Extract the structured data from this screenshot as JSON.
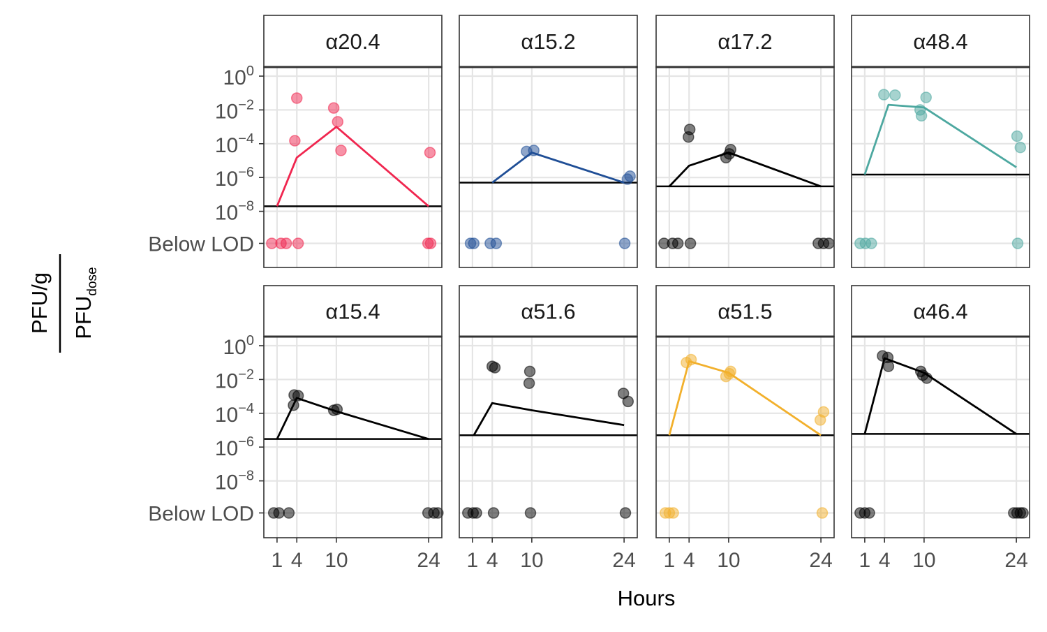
{
  "chart_data": {
    "type": "scatter",
    "xlabel": "Hours",
    "ylabel": {
      "numerator": "PFU/g",
      "denominator": "PFU",
      "denominator_subscript": "dose"
    },
    "y_scale": "log10",
    "ylim_log10": [
      -9,
      2
    ],
    "y_ticks": [
      {
        "base": "10",
        "exp": "0",
        "value": 1
      },
      {
        "base": "10",
        "exp": "−2",
        "value": 0.01
      },
      {
        "base": "10",
        "exp": "−4",
        "value": 0.0001
      },
      {
        "base": "10",
        "exp": "−6",
        "value": 1e-06
      },
      {
        "base": "10",
        "exp": "−8",
        "value": 1e-08
      }
    ],
    "below_lod_label": "Below LOD",
    "x_ticks": [
      1,
      4,
      10,
      24
    ],
    "xlim": [
      -1,
      26
    ],
    "grid": true,
    "legend": "none",
    "panels": [
      {
        "title": "α20.4",
        "color": "#F0264F",
        "line_color": "#F0264F",
        "lod": 2e-08,
        "points": [
          [
            4,
            0.05
          ],
          [
            3.7,
            0.00015
          ],
          [
            9.6,
            0.013
          ],
          [
            10.2,
            0.002
          ],
          [
            10.7,
            4e-05
          ],
          [
            24.2,
            3e-05
          ]
        ],
        "below_lod_x": [
          0.2,
          1.6,
          2.4,
          4.2,
          23.9,
          24.3
        ],
        "line": [
          [
            1,
            2e-08
          ],
          [
            4,
            1.5e-05
          ],
          [
            10,
            0.001
          ],
          [
            24,
            2e-08
          ]
        ]
      },
      {
        "title": "α15.2",
        "color": "#1F4E96",
        "line_color": "#1F4E96",
        "lod": 5e-07,
        "points": [
          [
            9.2,
            3.5e-05
          ],
          [
            10.3,
            4e-05
          ],
          [
            24.5,
            8e-07
          ],
          [
            24.9,
            1.2e-06
          ]
        ],
        "below_lod_x": [
          0.7,
          1.2,
          3.7,
          4.6,
          24.1
        ],
        "line": [
          [
            4,
            5e-07
          ],
          [
            10,
            3e-05
          ],
          [
            24,
            5e-07
          ]
        ]
      },
      {
        "title": "α17.2",
        "color": "#000000",
        "line_color": "#000000",
        "lod": 3e-07,
        "points": [
          [
            4.1,
            0.0007
          ],
          [
            3.9,
            0.00025
          ],
          [
            9.6,
            1.5e-05
          ],
          [
            10.1,
            2.5e-05
          ],
          [
            10.3,
            4.5e-05
          ]
        ],
        "below_lod_x": [
          0.2,
          1.5,
          2.3,
          4.2,
          23.6,
          24.4,
          25.2
        ],
        "line": [
          [
            1,
            3e-07
          ],
          [
            4,
            5e-06
          ],
          [
            10,
            3e-05
          ],
          [
            24,
            3e-07
          ]
        ]
      },
      {
        "title": "α48.4",
        "color": "#4DA8A0",
        "line_color": "#4DA8A0",
        "lod": 1.5e-06,
        "points": [
          [
            3.9,
            0.08
          ],
          [
            5.6,
            0.075
          ],
          [
            9.4,
            0.01
          ],
          [
            9.6,
            0.0045
          ],
          [
            10.3,
            0.055
          ],
          [
            24.1,
            0.00028
          ],
          [
            24.6,
            6e-05
          ]
        ],
        "below_lod_x": [
          0.3,
          1.1,
          2.0,
          24.2
        ],
        "line": [
          [
            1,
            1.5e-06
          ],
          [
            4.6,
            0.02
          ],
          [
            10,
            0.014
          ],
          [
            24,
            4e-06
          ]
        ]
      },
      {
        "title": "α15.4",
        "color": "#000000",
        "line_color": "#000000",
        "lod": 3e-06,
        "points": [
          [
            3.6,
            0.0012
          ],
          [
            4.2,
            0.0011
          ],
          [
            3.5,
            0.0003
          ],
          [
            9.6,
            0.00015
          ],
          [
            10.1,
            0.00017
          ]
        ],
        "below_lod_x": [
          0.5,
          1.3,
          2.8,
          23.9,
          24.8,
          25.4
        ],
        "line": [
          [
            1,
            3e-06
          ],
          [
            4,
            0.0008
          ],
          [
            10,
            0.00013
          ],
          [
            24,
            3e-06
          ]
        ]
      },
      {
        "title": "α51.6",
        "color": "#000000",
        "line_color": "#000000",
        "lod": 5e-06,
        "points": [
          [
            4.0,
            0.06
          ],
          [
            4.4,
            0.05
          ],
          [
            9.7,
            0.03
          ],
          [
            9.6,
            0.006
          ],
          [
            23.9,
            0.0015
          ],
          [
            24.6,
            0.0005
          ]
        ],
        "below_lod_x": [
          0.3,
          1.1,
          1.6,
          4.2,
          9.8,
          24.2
        ],
        "line": [
          [
            1.2,
            5e-06
          ],
          [
            4,
            0.0004
          ],
          [
            10,
            0.00015
          ],
          [
            24,
            2e-05
          ]
        ]
      },
      {
        "title": "α51.5",
        "color": "#F2B02C",
        "line_color": "#F2B02C",
        "lod": 5e-06,
        "points": [
          [
            3.6,
            0.1
          ],
          [
            4.3,
            0.15
          ],
          [
            9.6,
            0.015
          ],
          [
            10.1,
            0.022
          ],
          [
            10.3,
            0.03
          ],
          [
            23.9,
            4e-05
          ],
          [
            24.4,
            0.00012
          ]
        ],
        "below_lod_x": [
          0.4,
          1.0,
          1.6,
          24.2
        ],
        "line": [
          [
            1,
            5e-06
          ],
          [
            4,
            0.12
          ],
          [
            10,
            0.025
          ],
          [
            24,
            5e-06
          ]
        ]
      },
      {
        "title": "α46.4",
        "color": "#000000",
        "line_color": "#000000",
        "lod": 6e-06,
        "points": [
          [
            3.7,
            0.25
          ],
          [
            4.5,
            0.2
          ],
          [
            4.6,
            0.06
          ],
          [
            9.5,
            0.03
          ],
          [
            9.8,
            0.018
          ],
          [
            10.4,
            0.012
          ]
        ],
        "below_lod_x": [
          0.3,
          1.0,
          1.7,
          23.6,
          24.1,
          24.6,
          25.0
        ],
        "line": [
          [
            1,
            6e-06
          ],
          [
            4,
            0.18
          ],
          [
            10,
            0.025
          ],
          [
            24,
            6e-06
          ]
        ]
      }
    ]
  }
}
